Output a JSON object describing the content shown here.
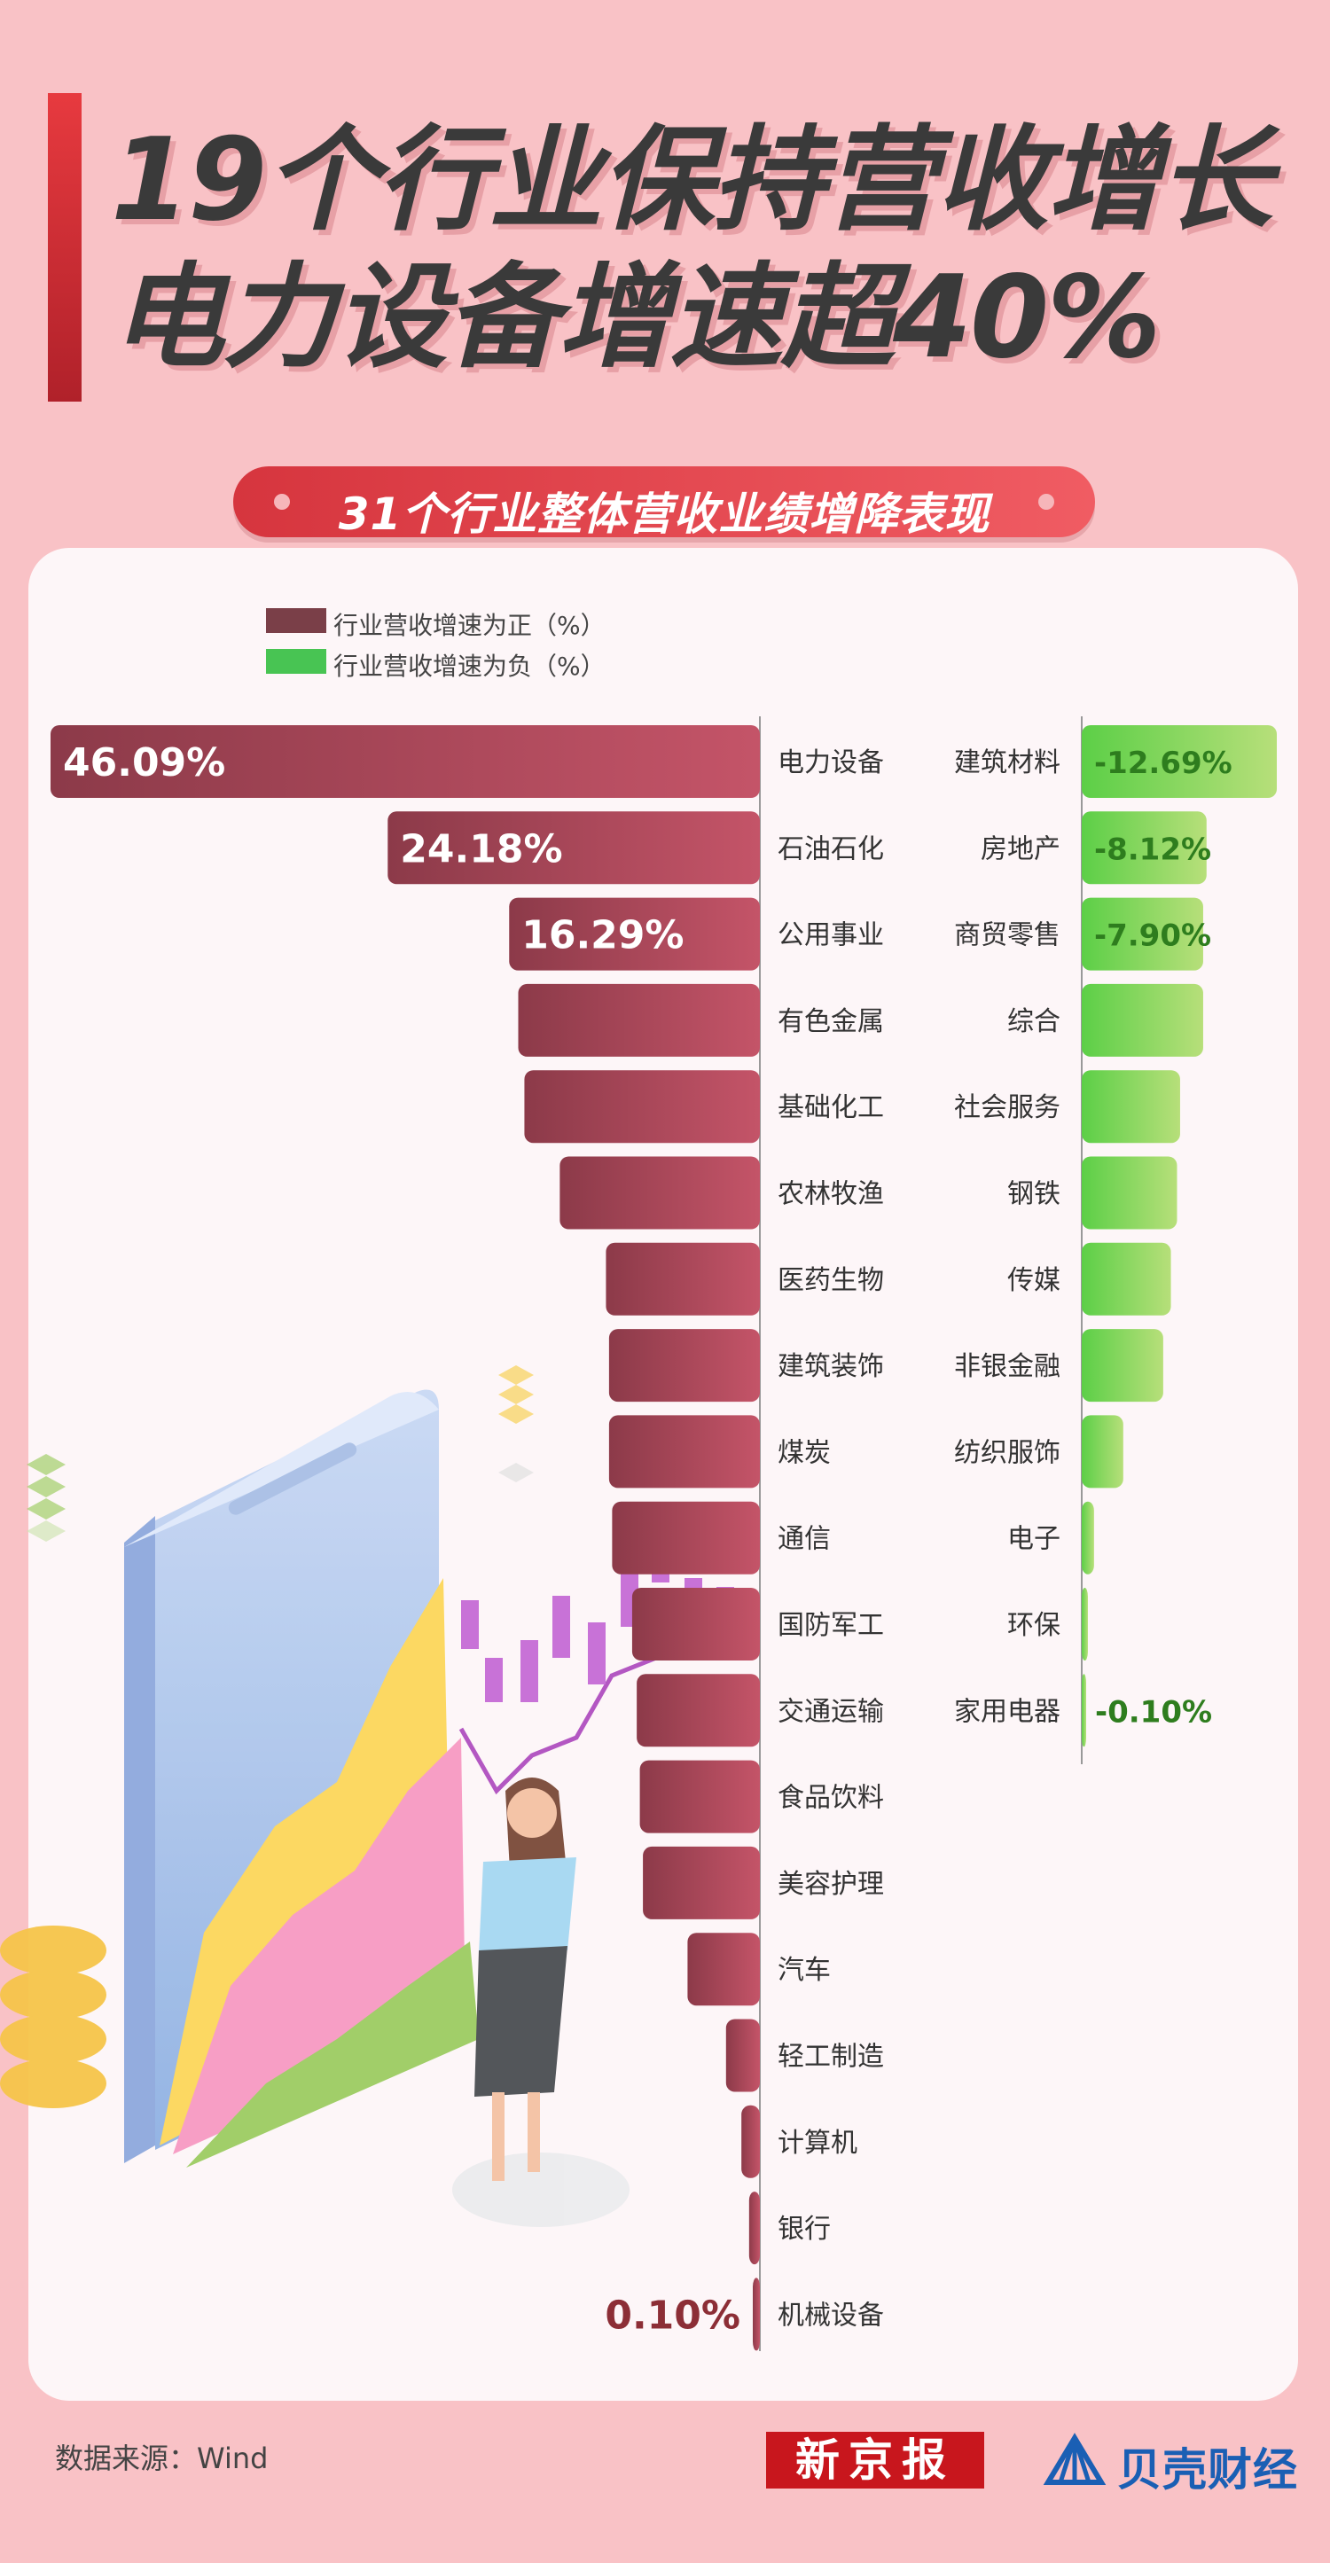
{
  "title": {
    "line1": "19个行业保持营收增长",
    "line2": "电力设备增速超40%"
  },
  "subtitle": "31个行业整体营收业绩增降表现",
  "legend": {
    "positive": "行业营收增速为正（%）",
    "negative": "行业营收增速为负（%）"
  },
  "footer": {
    "source": "数据来源：Wind",
    "logo_xjb": "新京报",
    "logo_bk": "贝壳财经"
  },
  "colors": {
    "positive_dark": "#8c3a49",
    "positive_light": "#c45468",
    "negative_dark": "#5ccf47",
    "negative_light": "#b7df7a",
    "negative_label": "#2e7d1e"
  },
  "chart_data": {
    "type": "bar",
    "positive_series": {
      "name": "行业营收增速为正（%）",
      "categories": [
        "电力设备",
        "石油石化",
        "公用事业",
        "有色金属",
        "基础化工",
        "农林牧渔",
        "医药生物",
        "建筑装饰",
        "煤炭",
        "通信",
        "国防军工",
        "交通运输",
        "食品饮料",
        "美容护理",
        "汽车",
        "轻工制造",
        "计算机",
        "银行",
        "机械设备"
      ],
      "values": [
        46.09,
        24.18,
        16.29,
        15.7,
        15.3,
        13.0,
        10.0,
        9.8,
        9.8,
        9.6,
        8.3,
        8.0,
        7.8,
        7.6,
        4.7,
        2.2,
        1.2,
        0.7,
        0.1
      ],
      "value_labels": [
        "46.09%",
        "24.18%",
        "16.29%",
        "",
        "",
        "",
        "",
        "",
        "",
        "",
        "",
        "",
        "",
        "",
        "",
        "",
        "",
        "",
        "0.10%"
      ]
    },
    "negative_series": {
      "name": "行业营收增速为负（%）",
      "categories": [
        "建筑材料",
        "房地产",
        "商贸零售",
        "综合",
        "社会服务",
        "钢铁",
        "传媒",
        "非银金融",
        "纺织服饰",
        "电子",
        "环保",
        "家用电器"
      ],
      "values": [
        -12.69,
        -8.12,
        -7.9,
        -7.9,
        -6.4,
        -6.2,
        -5.8,
        -5.3,
        -2.7,
        -0.8,
        -0.4,
        -0.1
      ],
      "value_labels": [
        "-12.69%",
        "-8.12%",
        "-7.90%",
        "",
        "",
        "",
        "",
        "",
        "",
        "",
        "",
        "-0.10%"
      ]
    }
  }
}
